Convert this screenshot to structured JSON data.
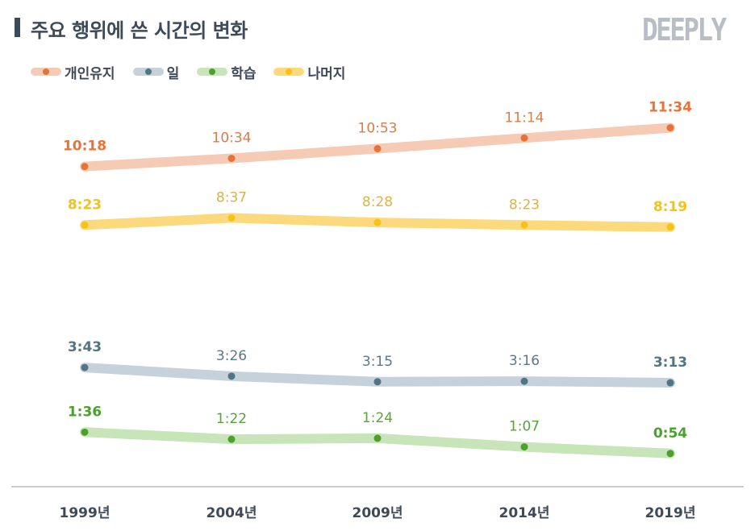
{
  "title": "주요 행위에 쓴 시간의 변화",
  "logo_text": "DEEPLY",
  "colors": {
    "axis": "#b9bcc2",
    "text_dark": "#3f4a58"
  },
  "chart_data": {
    "type": "line",
    "title": "주요 행위에 쓴 시간의 변화",
    "categories": [
      "1999년",
      "2004년",
      "2009년",
      "2014년",
      "2019년"
    ],
    "ylim": [
      0.5,
      11.9
    ],
    "grid": false,
    "legend_position": "top-left",
    "series": [
      {
        "name": "개인유지",
        "values_hours": [
          10.3,
          10.567,
          10.883,
          11.233,
          11.567
        ],
        "labels": [
          "10:18",
          "10:34",
          "10:53",
          "11:14",
          "11:34"
        ],
        "line_color": "#f6cbb6",
        "dot_color": "#e5743b",
        "label_color": "#e07b45",
        "label_position": "above"
      },
      {
        "name": "일",
        "values_hours": [
          3.717,
          3.433,
          3.25,
          3.267,
          3.217
        ],
        "labels": [
          "3:43",
          "3:26",
          "3:15",
          "3:16",
          "3:13"
        ],
        "line_color": "#c6d2db",
        "dot_color": "#527584",
        "label_color": "#5b7886",
        "label_position": "above"
      },
      {
        "name": "학습",
        "values_hours": [
          1.6,
          1.367,
          1.4,
          1.117,
          0.9
        ],
        "labels": [
          "1:36",
          "1:22",
          "1:24",
          "1:07",
          "0:54"
        ],
        "line_color": "#c7e5b8",
        "dot_color": "#4ca02c",
        "label_color": "#5aa33c",
        "label_position": "above"
      },
      {
        "name": "나머지",
        "values_hours": [
          8.383,
          8.617,
          8.467,
          8.383,
          8.317
        ],
        "labels": [
          "8:23",
          "8:37",
          "8:28",
          "8:23",
          "8:19"
        ],
        "line_color": "#fbd97c",
        "dot_color": "#f5c21a",
        "label_color": "#d9b347",
        "label_position": "above"
      }
    ]
  }
}
